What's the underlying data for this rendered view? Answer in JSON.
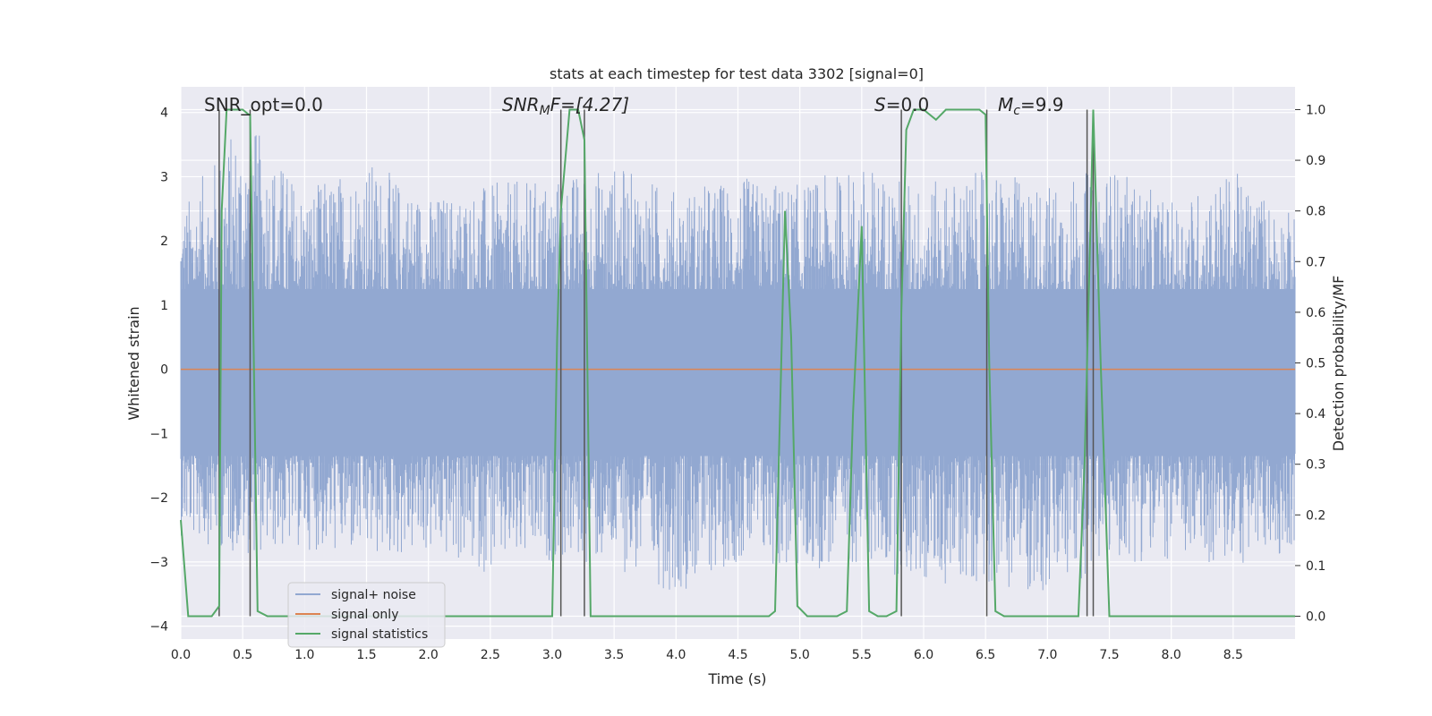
{
  "chart_data": {
    "type": "line",
    "title": "stats at each timestep for test data 3302 [signal=0]",
    "xlabel": "Time (s)",
    "ylabel_left": "Whitened strain",
    "ylabel_right": "Detection probability/MF",
    "xlim": [
      0.0,
      9.0
    ],
    "ylim_left": [
      -4.2,
      4.4
    ],
    "ylim_right": [
      -0.045,
      1.045
    ],
    "x_ticks": [
      "0.0",
      "0.5",
      "1.0",
      "1.5",
      "2.0",
      "2.5",
      "3.0",
      "3.5",
      "4.0",
      "4.5",
      "5.0",
      "5.5",
      "6.0",
      "6.5",
      "7.0",
      "7.5",
      "8.0",
      "8.5"
    ],
    "y_ticks_left": [
      "4",
      "3",
      "2",
      "1",
      "0",
      "−1",
      "−2",
      "−3",
      "−4"
    ],
    "y_ticks_right": [
      "1.0",
      "0.9",
      "0.8",
      "0.7",
      "0.6",
      "0.5",
      "0.4",
      "0.3",
      "0.2",
      "0.1",
      "0.0"
    ],
    "grid": true,
    "legend_position": "lower-left",
    "annotations": {
      "snr_opt": "SNR_opt=0.0",
      "snr_mf_sym": "SNR",
      "snr_mf_sub": "M",
      "snr_mf_rest": "F=[4.27]",
      "s_sym": "S",
      "s_rest": "=0.0",
      "mc_sym": "M",
      "mc_sub": "c",
      "mc_rest": "=9.9"
    },
    "noise_envelope": {
      "t": [
        0.0,
        0.5,
        1.0,
        1.5,
        2.0,
        2.5,
        3.0,
        3.5,
        4.0,
        4.5,
        5.0,
        5.5,
        6.0,
        6.5,
        7.0,
        7.5,
        8.0,
        8.5,
        9.0
      ],
      "upper": [
        2.5,
        4.0,
        2.8,
        3.3,
        2.7,
        2.9,
        3.0,
        3.2,
        2.8,
        3.0,
        2.9,
        3.2,
        2.9,
        3.1,
        2.9,
        3.2,
        2.6,
        3.1,
        2.4
      ],
      "lower": [
        -2.6,
        -2.9,
        -2.8,
        -3.0,
        -2.9,
        -3.2,
        -3.0,
        -3.1,
        -3.5,
        -3.0,
        -3.2,
        -3.0,
        -3.4,
        -3.3,
        -3.6,
        -3.0,
        -3.0,
        -3.1,
        -2.8
      ]
    },
    "vertical_markers": [
      0.31,
      0.56,
      3.07,
      3.26,
      5.82,
      6.51,
      7.32,
      7.37
    ],
    "series": [
      {
        "name": "signal+ noise",
        "color": "#92a8d1",
        "axis": "left"
      },
      {
        "name": "signal only",
        "color": "#dd8452",
        "axis": "left",
        "x": [
          0.0,
          9.0
        ],
        "y": [
          0.0,
          0.0
        ]
      },
      {
        "name": "signal statistics",
        "color": "#55a868",
        "axis": "right",
        "x": [
          0.0,
          0.06,
          0.25,
          0.31,
          0.33,
          0.37,
          0.42,
          0.5,
          0.55,
          0.56,
          0.62,
          0.7,
          0.8,
          1.0,
          2.0,
          3.0,
          3.04,
          3.07,
          3.14,
          3.21,
          3.26,
          3.31,
          3.4,
          4.0,
          4.5,
          4.75,
          4.8,
          4.84,
          4.88,
          4.93,
          4.98,
          5.06,
          5.15,
          5.3,
          5.38,
          5.43,
          5.5,
          5.56,
          5.63,
          5.7,
          5.78,
          5.82,
          5.86,
          5.92,
          6.0,
          6.1,
          6.18,
          6.3,
          6.45,
          6.5,
          6.53,
          6.58,
          6.65,
          6.8,
          7.0,
          7.25,
          7.3,
          7.34,
          7.37,
          7.43,
          7.5,
          7.6,
          8.0,
          9.0
        ],
        "y": [
          0.19,
          0.0,
          0.0,
          0.02,
          0.8,
          1.0,
          1.0,
          1.0,
          0.99,
          0.99,
          0.01,
          0.0,
          0.0,
          0.0,
          0.0,
          0.0,
          0.55,
          0.8,
          1.0,
          1.0,
          0.94,
          0.0,
          0.0,
          0.0,
          0.0,
          0.0,
          0.01,
          0.4,
          0.8,
          0.55,
          0.02,
          0.0,
          0.0,
          0.0,
          0.01,
          0.4,
          0.77,
          0.01,
          0.0,
          0.0,
          0.01,
          0.6,
          0.96,
          1.0,
          1.0,
          0.98,
          1.0,
          1.0,
          1.0,
          0.99,
          0.5,
          0.01,
          0.0,
          0.0,
          0.0,
          0.0,
          0.3,
          0.7,
          1.0,
          0.5,
          0.0,
          0.0,
          0.0,
          0.0
        ]
      }
    ]
  }
}
